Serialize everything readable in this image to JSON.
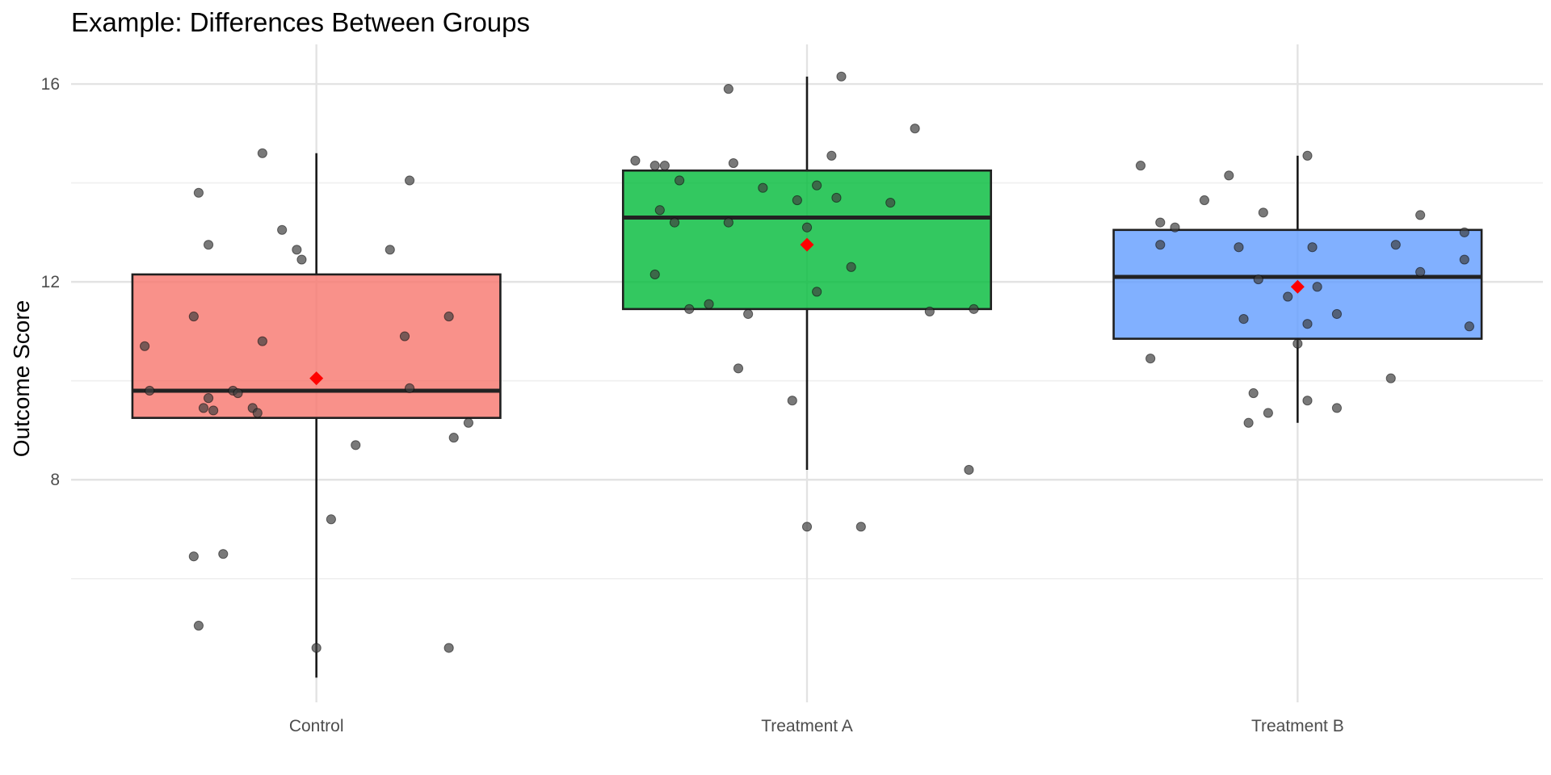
{
  "chart_data": {
    "type": "box",
    "title": "Example: Differences Between Groups",
    "xlabel": "",
    "ylabel": "Outcome Score",
    "ylim": [
      3.5,
      16.8
    ],
    "yticks": [
      8,
      12,
      16
    ],
    "grid": true,
    "legend": "none",
    "categories": [
      "Control",
      "Treatment A",
      "Treatment B"
    ],
    "colors": {
      "Control": "#f8766d",
      "Treatment A": "#00ba38",
      "Treatment B": "#619cff",
      "mean_marker": "#ff0000",
      "point": "#404040"
    },
    "boxes": [
      {
        "group": "Control",
        "whisker_low": 4.0,
        "q1": 9.25,
        "median": 9.8,
        "q3": 12.15,
        "whisker_high": 14.6,
        "mean": 10.05
      },
      {
        "group": "Treatment A",
        "whisker_low": 8.2,
        "q1": 11.45,
        "median": 13.3,
        "q3": 14.25,
        "whisker_high": 16.15,
        "mean": 12.75
      },
      {
        "group": "Treatment B",
        "whisker_low": 9.15,
        "q1": 10.85,
        "median": 12.1,
        "q3": 13.05,
        "whisker_high": 14.55,
        "mean": 11.9
      }
    ],
    "points": [
      {
        "group": "Control",
        "jitter": -0.11,
        "y": 14.6
      },
      {
        "group": "Control",
        "jitter": -0.24,
        "y": 13.8
      },
      {
        "group": "Control",
        "jitter": 0.19,
        "y": 14.05
      },
      {
        "group": "Control",
        "jitter": -0.07,
        "y": 13.05
      },
      {
        "group": "Control",
        "jitter": -0.22,
        "y": 12.75
      },
      {
        "group": "Control",
        "jitter": -0.04,
        "y": 12.65
      },
      {
        "group": "Control",
        "jitter": 0.15,
        "y": 12.65
      },
      {
        "group": "Control",
        "jitter": -0.03,
        "y": 12.45
      },
      {
        "group": "Control",
        "jitter": -0.25,
        "y": 11.3
      },
      {
        "group": "Control",
        "jitter": 0.27,
        "y": 11.3
      },
      {
        "group": "Control",
        "jitter": -0.35,
        "y": 10.7
      },
      {
        "group": "Control",
        "jitter": -0.11,
        "y": 10.8
      },
      {
        "group": "Control",
        "jitter": 0.18,
        "y": 10.9
      },
      {
        "group": "Control",
        "jitter": -0.34,
        "y": 9.8
      },
      {
        "group": "Control",
        "jitter": -0.17,
        "y": 9.8
      },
      {
        "group": "Control",
        "jitter": -0.22,
        "y": 9.65
      },
      {
        "group": "Control",
        "jitter": -0.16,
        "y": 9.75
      },
      {
        "group": "Control",
        "jitter": 0.19,
        "y": 9.85
      },
      {
        "group": "Control",
        "jitter": -0.21,
        "y": 9.4
      },
      {
        "group": "Control",
        "jitter": -0.23,
        "y": 9.45
      },
      {
        "group": "Control",
        "jitter": -0.13,
        "y": 9.45
      },
      {
        "group": "Control",
        "jitter": -0.12,
        "y": 9.35
      },
      {
        "group": "Control",
        "jitter": 0.31,
        "y": 9.15
      },
      {
        "group": "Control",
        "jitter": 0.28,
        "y": 8.85
      },
      {
        "group": "Control",
        "jitter": 0.08,
        "y": 8.7
      },
      {
        "group": "Control",
        "jitter": 0.03,
        "y": 7.2
      },
      {
        "group": "Control",
        "jitter": -0.25,
        "y": 6.45
      },
      {
        "group": "Control",
        "jitter": -0.19,
        "y": 6.5
      },
      {
        "group": "Control",
        "jitter": -0.24,
        "y": 5.05
      },
      {
        "group": "Control",
        "jitter": 0.0,
        "y": 4.6
      },
      {
        "group": "Control",
        "jitter": 0.27,
        "y": 4.6
      },
      {
        "group": "Treatment A",
        "jitter": 0.07,
        "y": 16.15
      },
      {
        "group": "Treatment A",
        "jitter": -0.16,
        "y": 15.9
      },
      {
        "group": "Treatment A",
        "jitter": 0.22,
        "y": 15.1
      },
      {
        "group": "Treatment A",
        "jitter": 0.05,
        "y": 14.55
      },
      {
        "group": "Treatment A",
        "jitter": -0.35,
        "y": 14.45
      },
      {
        "group": "Treatment A",
        "jitter": -0.29,
        "y": 14.35
      },
      {
        "group": "Treatment A",
        "jitter": -0.31,
        "y": 14.35
      },
      {
        "group": "Treatment A",
        "jitter": -0.15,
        "y": 14.4
      },
      {
        "group": "Treatment A",
        "jitter": -0.26,
        "y": 14.05
      },
      {
        "group": "Treatment A",
        "jitter": -0.09,
        "y": 13.9
      },
      {
        "group": "Treatment A",
        "jitter": 0.02,
        "y": 13.95
      },
      {
        "group": "Treatment A",
        "jitter": 0.06,
        "y": 13.7
      },
      {
        "group": "Treatment A",
        "jitter": -0.02,
        "y": 13.65
      },
      {
        "group": "Treatment A",
        "jitter": 0.17,
        "y": 13.6
      },
      {
        "group": "Treatment A",
        "jitter": -0.3,
        "y": 13.45
      },
      {
        "group": "Treatment A",
        "jitter": -0.27,
        "y": 13.2
      },
      {
        "group": "Treatment A",
        "jitter": -0.16,
        "y": 13.2
      },
      {
        "group": "Treatment A",
        "jitter": 0.0,
        "y": 13.1
      },
      {
        "group": "Treatment A",
        "jitter": 0.09,
        "y": 12.3
      },
      {
        "group": "Treatment A",
        "jitter": -0.31,
        "y": 12.15
      },
      {
        "group": "Treatment A",
        "jitter": 0.02,
        "y": 11.8
      },
      {
        "group": "Treatment A",
        "jitter": -0.2,
        "y": 11.55
      },
      {
        "group": "Treatment A",
        "jitter": -0.24,
        "y": 11.45
      },
      {
        "group": "Treatment A",
        "jitter": -0.12,
        "y": 11.35
      },
      {
        "group": "Treatment A",
        "jitter": 0.25,
        "y": 11.4
      },
      {
        "group": "Treatment A",
        "jitter": 0.34,
        "y": 11.45
      },
      {
        "group": "Treatment A",
        "jitter": -0.14,
        "y": 10.25
      },
      {
        "group": "Treatment A",
        "jitter": -0.03,
        "y": 9.6
      },
      {
        "group": "Treatment A",
        "jitter": 0.33,
        "y": 8.2
      },
      {
        "group": "Treatment A",
        "jitter": 0.0,
        "y": 7.05
      },
      {
        "group": "Treatment A",
        "jitter": 0.11,
        "y": 7.05
      },
      {
        "group": "Treatment B",
        "jitter": 0.02,
        "y": 14.55
      },
      {
        "group": "Treatment B",
        "jitter": -0.32,
        "y": 14.35
      },
      {
        "group": "Treatment B",
        "jitter": -0.14,
        "y": 14.15
      },
      {
        "group": "Treatment B",
        "jitter": -0.19,
        "y": 13.65
      },
      {
        "group": "Treatment B",
        "jitter": -0.07,
        "y": 13.4
      },
      {
        "group": "Treatment B",
        "jitter": 0.25,
        "y": 13.35
      },
      {
        "group": "Treatment B",
        "jitter": -0.28,
        "y": 13.2
      },
      {
        "group": "Treatment B",
        "jitter": -0.25,
        "y": 13.1
      },
      {
        "group": "Treatment B",
        "jitter": 0.34,
        "y": 13.0
      },
      {
        "group": "Treatment B",
        "jitter": -0.28,
        "y": 12.75
      },
      {
        "group": "Treatment B",
        "jitter": -0.12,
        "y": 12.7
      },
      {
        "group": "Treatment B",
        "jitter": 0.03,
        "y": 12.7
      },
      {
        "group": "Treatment B",
        "jitter": 0.2,
        "y": 12.75
      },
      {
        "group": "Treatment B",
        "jitter": 0.34,
        "y": 12.45
      },
      {
        "group": "Treatment B",
        "jitter": 0.25,
        "y": 12.2
      },
      {
        "group": "Treatment B",
        "jitter": -0.08,
        "y": 12.05
      },
      {
        "group": "Treatment B",
        "jitter": 0.04,
        "y": 11.9
      },
      {
        "group": "Treatment B",
        "jitter": -0.02,
        "y": 11.7
      },
      {
        "group": "Treatment B",
        "jitter": 0.08,
        "y": 11.35
      },
      {
        "group": "Treatment B",
        "jitter": -0.11,
        "y": 11.25
      },
      {
        "group": "Treatment B",
        "jitter": 0.02,
        "y": 11.15
      },
      {
        "group": "Treatment B",
        "jitter": 0.35,
        "y": 11.1
      },
      {
        "group": "Treatment B",
        "jitter": 0.0,
        "y": 10.75
      },
      {
        "group": "Treatment B",
        "jitter": -0.3,
        "y": 10.45
      },
      {
        "group": "Treatment B",
        "jitter": 0.19,
        "y": 10.05
      },
      {
        "group": "Treatment B",
        "jitter": -0.09,
        "y": 9.75
      },
      {
        "group": "Treatment B",
        "jitter": 0.02,
        "y": 9.6
      },
      {
        "group": "Treatment B",
        "jitter": 0.08,
        "y": 9.45
      },
      {
        "group": "Treatment B",
        "jitter": -0.06,
        "y": 9.35
      },
      {
        "group": "Treatment B",
        "jitter": -0.1,
        "y": 9.15
      }
    ]
  }
}
